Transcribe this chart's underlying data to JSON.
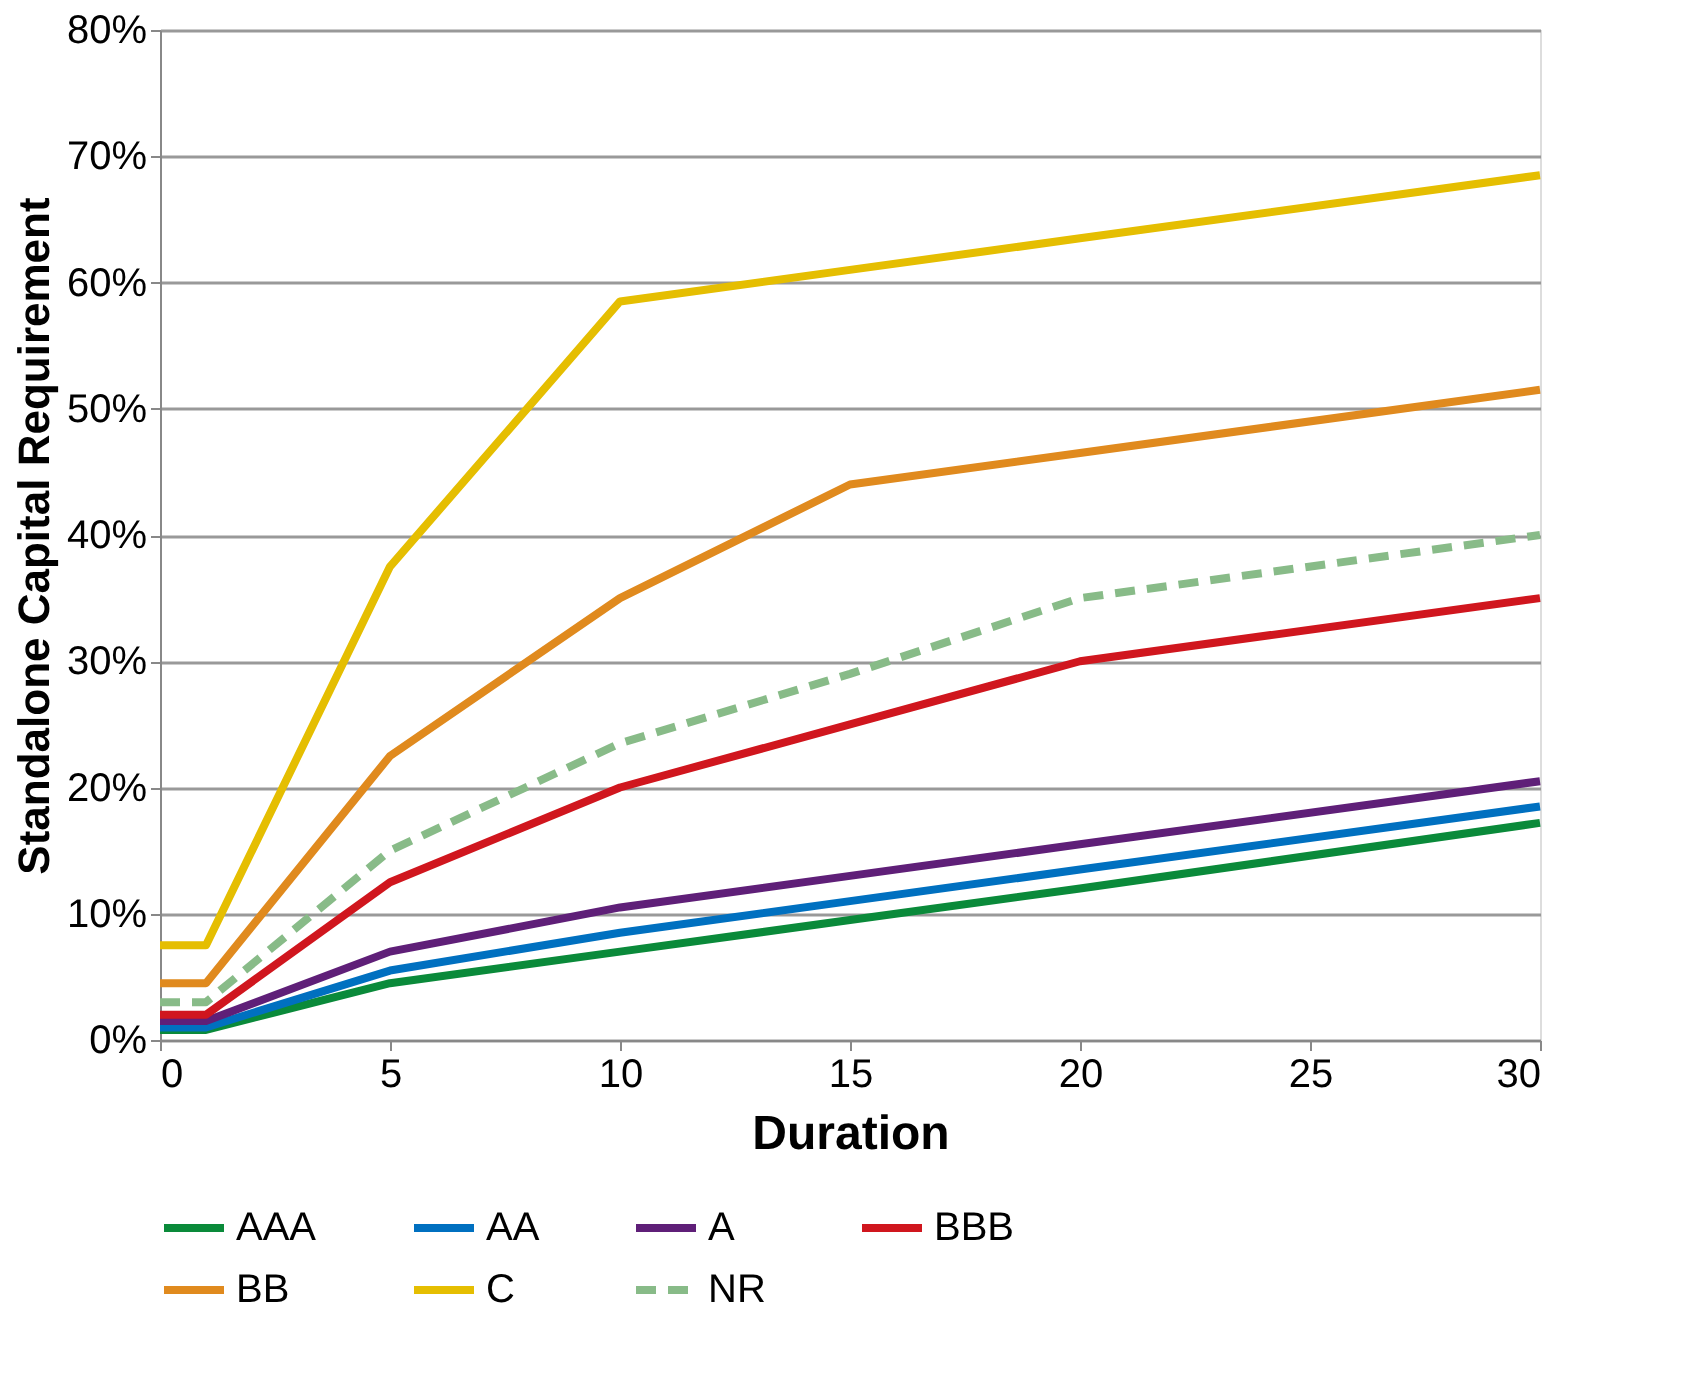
{
  "chart_data": {
    "type": "line",
    "xlabel": "Duration",
    "ylabel": "Standalone Capital Requirement",
    "x": [
      0,
      1,
      5,
      10,
      15,
      20,
      30
    ],
    "series": [
      {
        "name": "AAA",
        "color": "#0a8a3a",
        "values": [
          0.8,
          0.8,
          4.5,
          7,
          9.5,
          12,
          17.2
        ]
      },
      {
        "name": "AA",
        "color": "#0070c0",
        "values": [
          1,
          1,
          5.5,
          8.5,
          11,
          13.5,
          18.5
        ]
      },
      {
        "name": "A",
        "color": "#5f1f78",
        "values": [
          1.5,
          1.5,
          7,
          10.5,
          13,
          15.5,
          20.5
        ]
      },
      {
        "name": "BBB",
        "color": "#d0161e",
        "values": [
          2,
          2,
          12.5,
          20,
          25,
          30,
          35
        ]
      },
      {
        "name": "BB",
        "color": "#e08a1e",
        "values": [
          4.5,
          4.5,
          22.5,
          35,
          44,
          46.5,
          51.5
        ]
      },
      {
        "name": "C",
        "color": "#e5be01",
        "values": [
          7.5,
          7.5,
          37.5,
          58.5,
          61,
          63.5,
          68.5
        ]
      },
      {
        "name": "NR",
        "color": "#88bb88",
        "line_style": "dashed",
        "values": [
          3,
          3,
          15,
          23.5,
          29,
          35,
          40
        ]
      }
    ],
    "xlim": [
      0,
      30
    ],
    "xticks": [
      0,
      5,
      10,
      15,
      20,
      25,
      30
    ],
    "ylim": [
      0,
      80
    ],
    "yticks": [
      {
        "value": 0,
        "label": "0%"
      },
      {
        "value": 10,
        "label": "10%"
      },
      {
        "value": 20,
        "label": "20%"
      },
      {
        "value": 30,
        "label": "30%"
      },
      {
        "value": 40,
        "label": "40%"
      },
      {
        "value": 50,
        "label": "50%"
      },
      {
        "value": 60,
        "label": "60%"
      },
      {
        "value": 70,
        "label": "70%"
      },
      {
        "value": 80,
        "label": "80%"
      }
    ],
    "grid": "y",
    "legend": "bottom",
    "marker": "none",
    "line_style": "solid"
  }
}
